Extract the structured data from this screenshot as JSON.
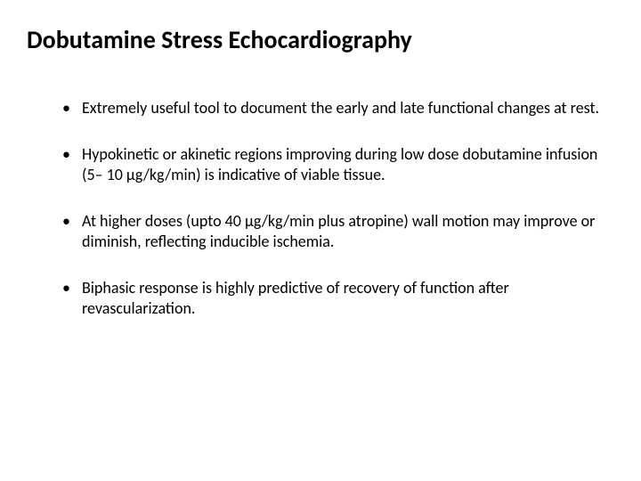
{
  "slide": {
    "title": "Dobutamine Stress Echocardiography",
    "title_fontsize": 28,
    "title_weight": 700,
    "body_fontsize": 18,
    "text_color": "#000000",
    "background_color": "#ffffff",
    "bullets": [
      "Extremely useful tool to document the early and late functional changes at rest.",
      "Hypokinetic or akinetic regions improving during low dose dobutamine infusion (5– 10 μg/kg/min) is indicative of viable tissue.",
      "At higher doses (upto 40 μg/kg/min plus atropine) wall motion  may improve or diminish, reflecting inducible ischemia.",
      "Biphasic response is highly predictive of recovery of function after revascularization."
    ]
  }
}
